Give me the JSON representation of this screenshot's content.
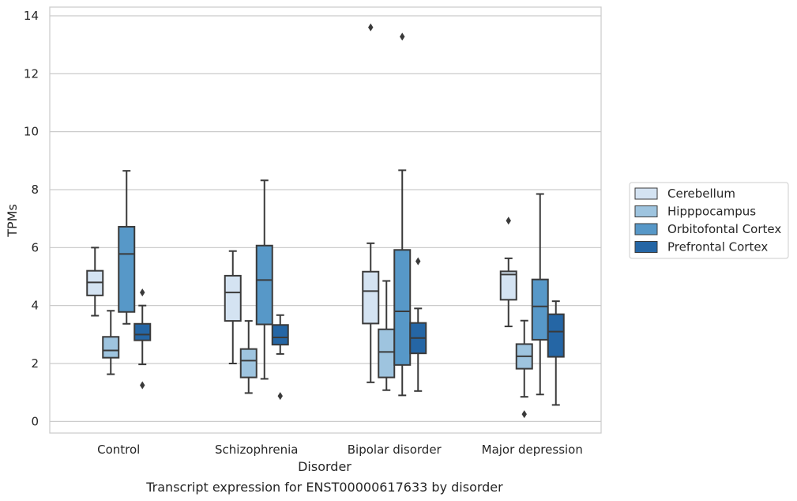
{
  "chart_data": {
    "type": "box",
    "title": "",
    "caption": "Transcript expression for ENST00000617633 by disorder",
    "xlabel": "Disorder",
    "ylabel": "TPMs",
    "ylim": [
      -0.4,
      14.3
    ],
    "yticks": [
      0,
      2,
      4,
      6,
      8,
      10,
      12,
      14
    ],
    "grid": true,
    "legend_position": "right",
    "categories": [
      "Control",
      "Schizophrenia",
      "Bipolar disorder",
      "Major depression"
    ],
    "series": [
      {
        "name": "Cerebellum",
        "color": "#d4e3f2",
        "boxes": [
          {
            "whislo": 3.65,
            "q1": 4.35,
            "med": 4.8,
            "q3": 5.2,
            "whishi": 6.0,
            "fliers": []
          },
          {
            "whislo": 2.0,
            "q1": 3.47,
            "med": 4.45,
            "q3": 5.03,
            "whishi": 5.88,
            "fliers": []
          },
          {
            "whislo": 1.35,
            "q1": 3.38,
            "med": 4.5,
            "q3": 5.17,
            "whishi": 6.15,
            "fliers": [
              13.6
            ]
          },
          {
            "whislo": 3.28,
            "q1": 4.2,
            "med": 5.07,
            "q3": 5.18,
            "whishi": 5.63,
            "fliers": [
              6.93
            ]
          }
        ]
      },
      {
        "name": "Hipppocampus",
        "color": "#9ec4df",
        "boxes": [
          {
            "whislo": 1.63,
            "q1": 2.2,
            "med": 2.45,
            "q3": 2.92,
            "whishi": 3.82,
            "fliers": []
          },
          {
            "whislo": 0.98,
            "q1": 1.52,
            "med": 2.1,
            "q3": 2.5,
            "whishi": 3.47,
            "fliers": []
          },
          {
            "whislo": 1.08,
            "q1": 1.52,
            "med": 2.4,
            "q3": 3.18,
            "whishi": 4.85,
            "fliers": []
          },
          {
            "whislo": 0.85,
            "q1": 1.82,
            "med": 2.25,
            "q3": 2.67,
            "whishi": 3.48,
            "fliers": [
              0.25
            ]
          }
        ]
      },
      {
        "name": "Orbitofontal Cortex",
        "color": "#5798c8",
        "boxes": [
          {
            "whislo": 3.37,
            "q1": 3.78,
            "med": 5.78,
            "q3": 6.72,
            "whishi": 8.65,
            "fliers": []
          },
          {
            "whislo": 1.47,
            "q1": 3.35,
            "med": 4.88,
            "q3": 6.07,
            "whishi": 8.32,
            "fliers": []
          },
          {
            "whislo": 0.9,
            "q1": 1.95,
            "med": 3.8,
            "q3": 5.92,
            "whishi": 8.67,
            "fliers": [
              13.28
            ]
          },
          {
            "whislo": 0.93,
            "q1": 2.82,
            "med": 3.97,
            "q3": 4.9,
            "whishi": 7.85,
            "fliers": []
          }
        ]
      },
      {
        "name": "Prefrontal Cortex",
        "color": "#2566a5",
        "boxes": [
          {
            "whislo": 1.97,
            "q1": 2.8,
            "med": 3.0,
            "q3": 3.37,
            "whishi": 4.0,
            "fliers": [
              1.25,
              4.45
            ]
          },
          {
            "whislo": 2.33,
            "q1": 2.65,
            "med": 2.9,
            "q3": 3.33,
            "whishi": 3.67,
            "fliers": [
              0.88
            ]
          },
          {
            "whislo": 1.05,
            "q1": 2.35,
            "med": 2.88,
            "q3": 3.4,
            "whishi": 3.9,
            "fliers": [
              5.53
            ]
          },
          {
            "whislo": 0.57,
            "q1": 2.23,
            "med": 3.1,
            "q3": 3.7,
            "whishi": 4.15,
            "fliers": []
          }
        ]
      }
    ]
  }
}
